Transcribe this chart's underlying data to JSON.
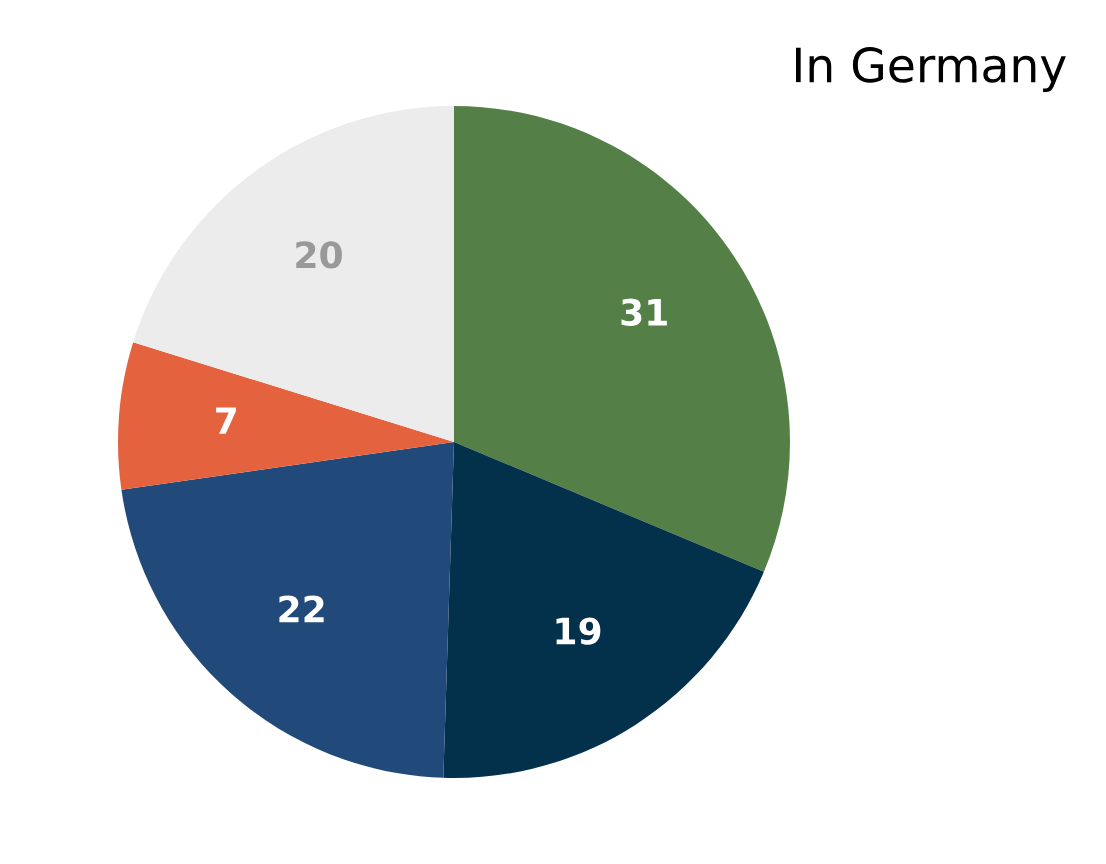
{
  "chart_data": {
    "type": "pie",
    "title": "In Germany",
    "categories": [
      null,
      null,
      null,
      null,
      null
    ],
    "values": [
      31,
      19,
      22,
      7,
      20
    ],
    "colors": [
      "#548047",
      "#03304b",
      "#214a7a",
      "#e5623f",
      "#ececec"
    ],
    "data_labels": true
  }
}
